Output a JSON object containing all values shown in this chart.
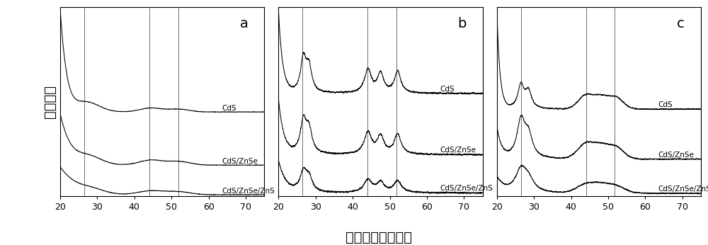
{
  "panels": [
    "a",
    "b",
    "c"
  ],
  "xlim": [
    20,
    75
  ],
  "xticks": [
    20,
    30,
    40,
    50,
    60,
    70
  ],
  "xlabel": "二倍衍射角（度）",
  "ylabel": "相对强度",
  "labels": [
    "CdS",
    "CdS/ZnSe",
    "CdS/ZnSe/ZnS"
  ],
  "vlines": [
    26.5,
    44.0,
    51.8
  ],
  "background": "#ffffff",
  "line_color": "#000000",
  "vline_color": "#555555",
  "label_fontsize": 7.5,
  "panel_label_fontsize": 14
}
